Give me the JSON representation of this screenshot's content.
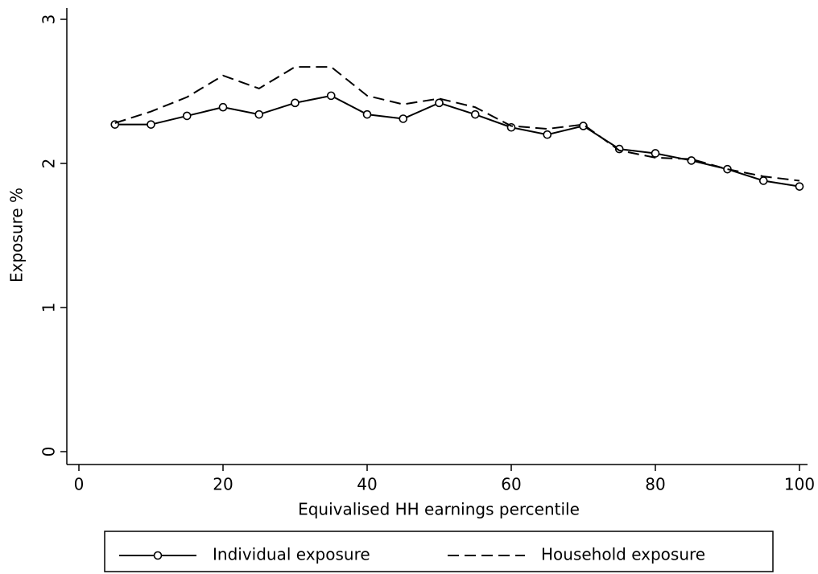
{
  "chart_data": {
    "type": "line",
    "x_label": "Equivalised HH earnings percentile",
    "y_label": "Exposure %",
    "x": [
      5,
      10,
      15,
      20,
      25,
      30,
      35,
      40,
      45,
      50,
      55,
      60,
      65,
      70,
      75,
      80,
      85,
      90,
      95,
      100
    ],
    "series": [
      {
        "name": "Individual exposure",
        "color": "#000000",
        "line_style": "solid",
        "marker": "circle",
        "values": [
          2.27,
          2.27,
          2.33,
          2.39,
          2.34,
          2.42,
          2.47,
          2.34,
          2.31,
          2.42,
          2.34,
          2.25,
          2.2,
          2.26,
          2.1,
          2.07,
          2.02,
          1.96,
          1.88,
          1.84
        ]
      },
      {
        "name": "Household exposure",
        "color": "#000000",
        "line_style": "dashed",
        "marker": null,
        "values": [
          2.28,
          2.36,
          2.46,
          2.61,
          2.52,
          2.67,
          2.67,
          2.47,
          2.41,
          2.45,
          2.39,
          2.26,
          2.24,
          2.27,
          2.09,
          2.04,
          2.03,
          1.96,
          1.91,
          1.88
        ]
      }
    ],
    "xlim": [
      0,
      100
    ],
    "xticks": [
      0,
      20,
      40,
      60,
      80,
      100
    ],
    "ylim": [
      0,
      3
    ],
    "yticks": [
      0,
      1,
      2,
      3
    ],
    "grid": false,
    "legend": "bottom"
  }
}
